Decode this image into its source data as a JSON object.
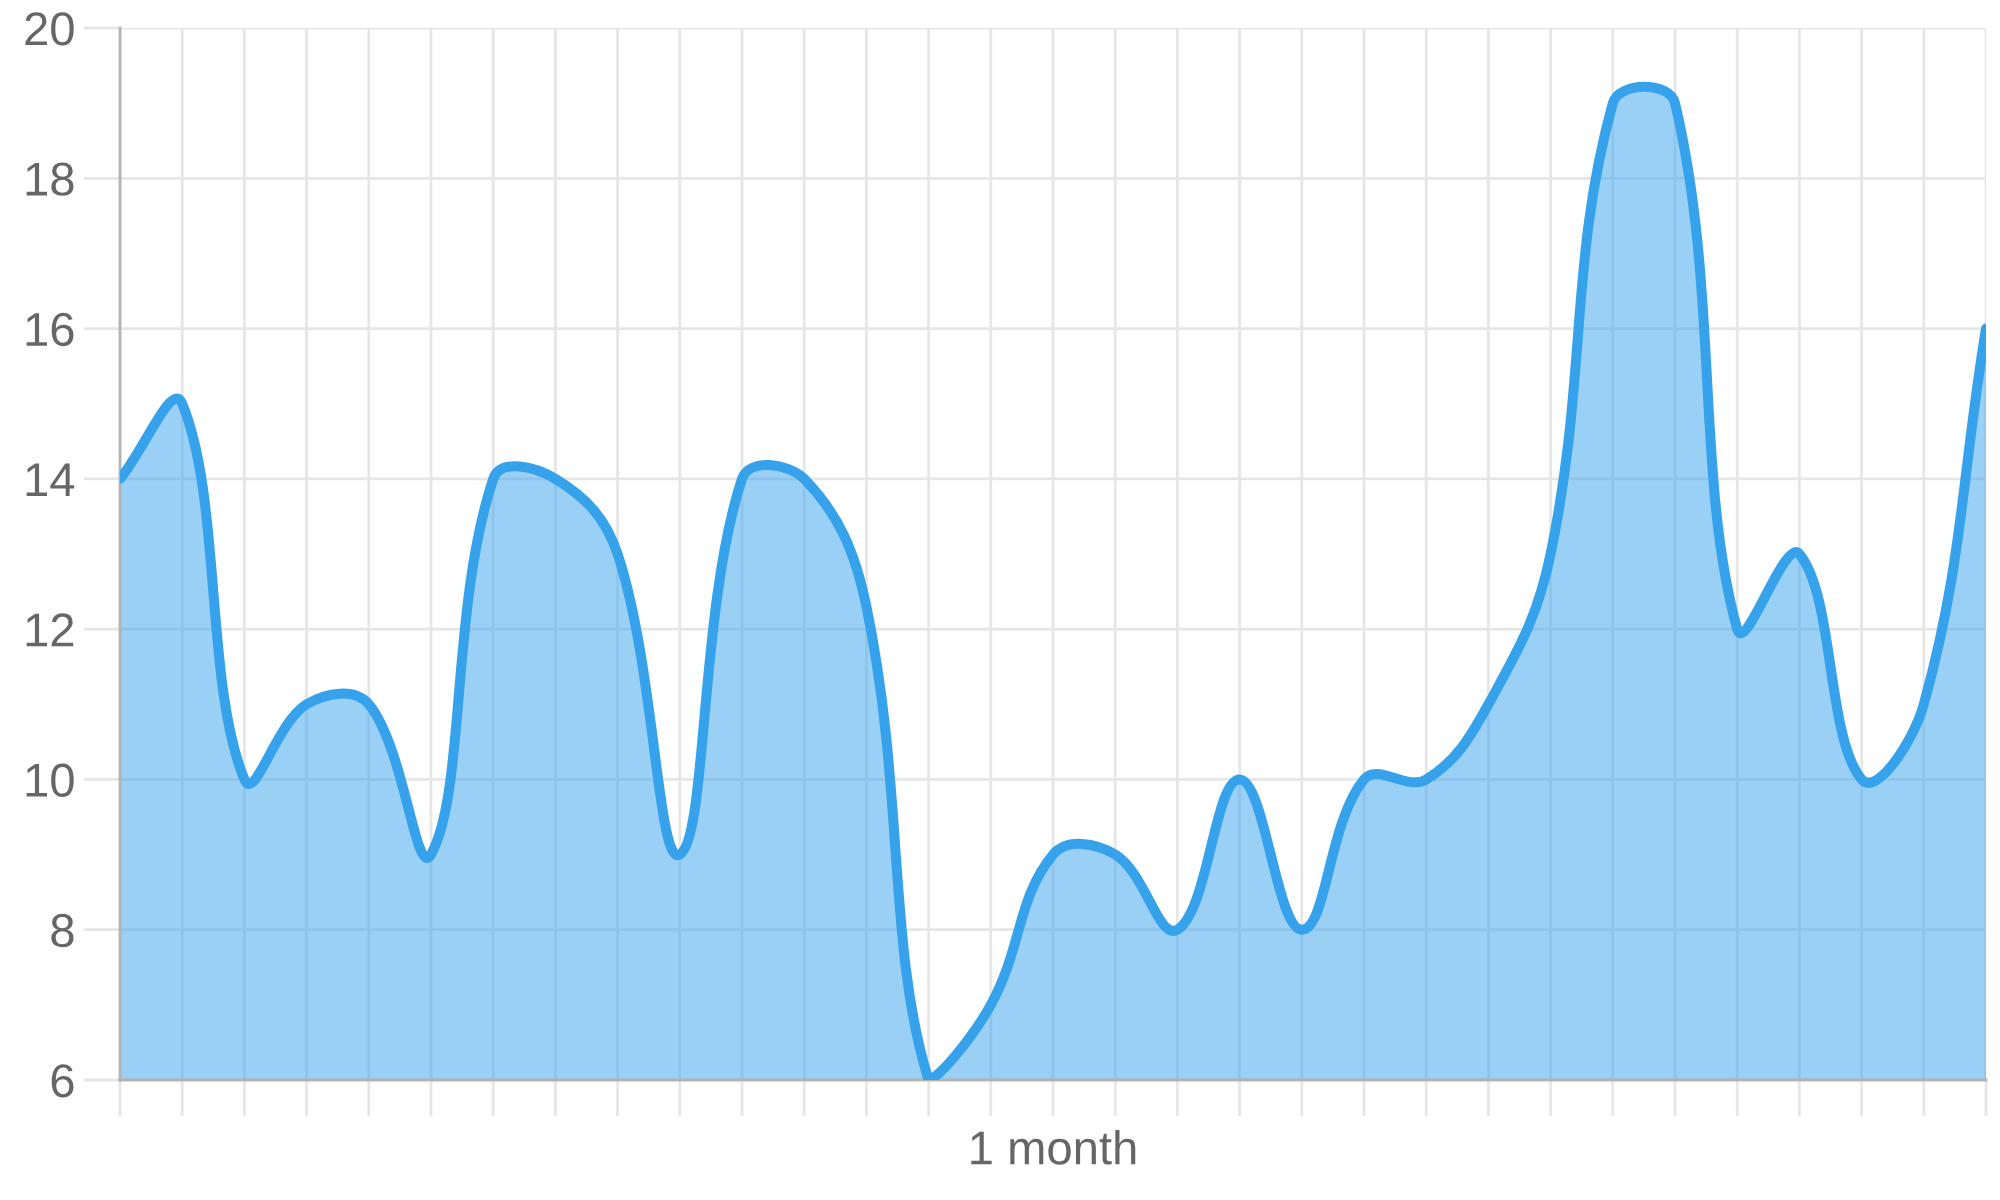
{
  "chart_data": {
    "type": "area",
    "categories": [
      null,
      null,
      null,
      null,
      null,
      null,
      null,
      null,
      null,
      null,
      null,
      null,
      null,
      null,
      null,
      null,
      null,
      null,
      null,
      null,
      null,
      null,
      null,
      null,
      null,
      null,
      null,
      null,
      null,
      null,
      null
    ],
    "xlabel": "1 month",
    "series": [
      {
        "color": "#36a2eb",
        "values": [
          14,
          15,
          10,
          11,
          11,
          9,
          14,
          14,
          13,
          9,
          14,
          14,
          12.3,
          6,
          7,
          9,
          9,
          8,
          10,
          8,
          10,
          10,
          11,
          13,
          19,
          19,
          12,
          13,
          10,
          11,
          16
        ]
      }
    ],
    "ylim": [
      6,
      20
    ],
    "yticks": [
      6,
      8,
      10,
      12,
      14,
      16,
      18,
      20
    ],
    "grid": true,
    "tick_labels": "y"
  }
}
